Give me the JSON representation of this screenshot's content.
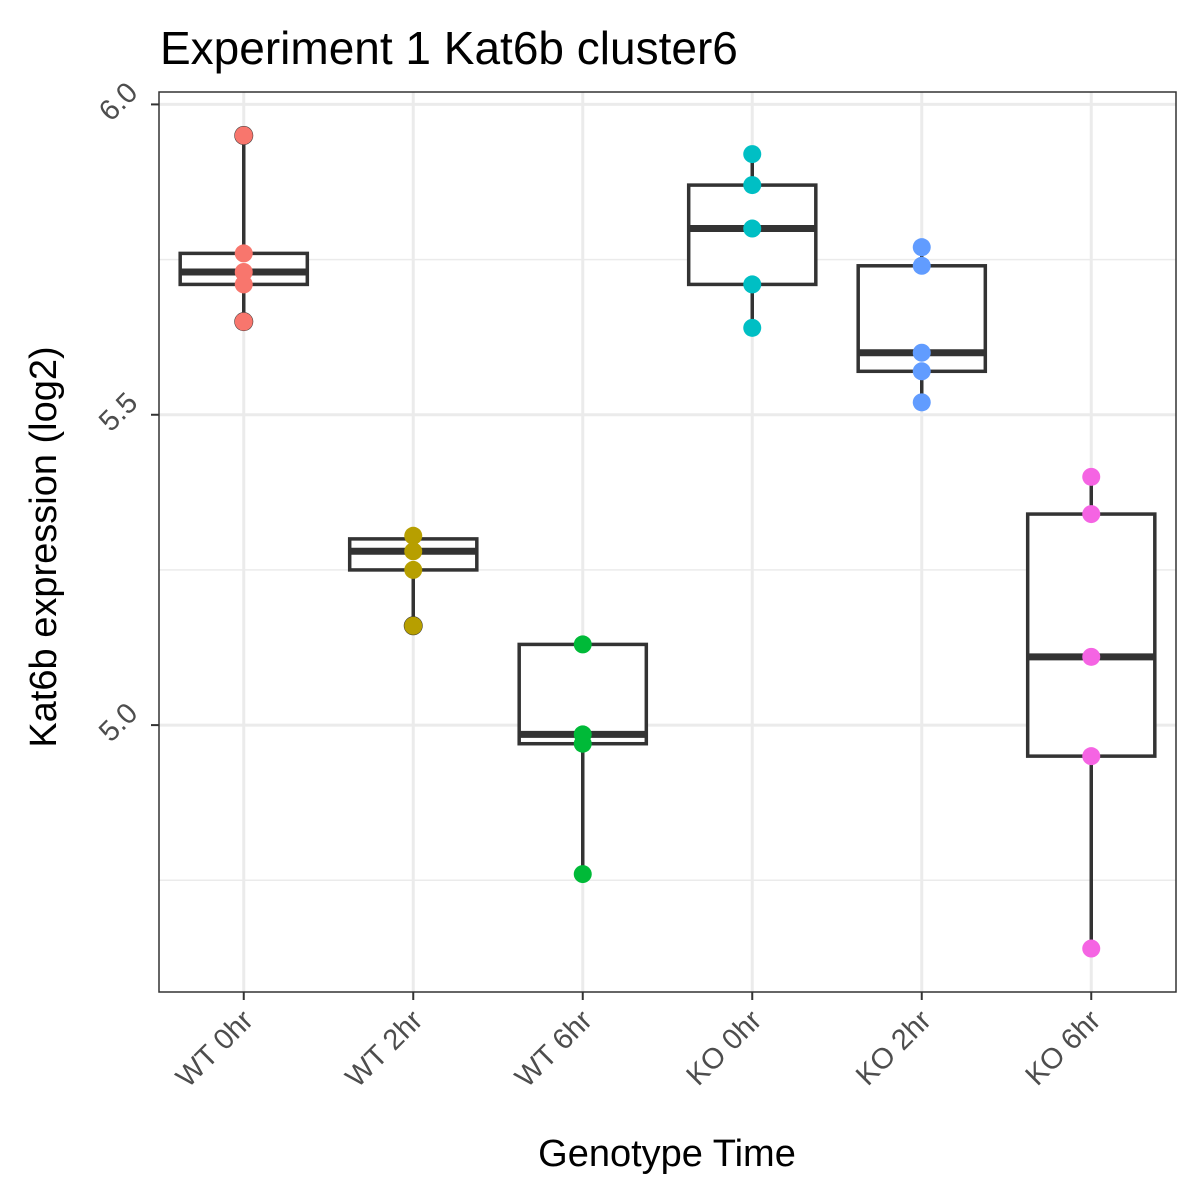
{
  "chart_data": {
    "type": "boxplot",
    "title": "Experiment 1 Kat6b cluster6",
    "xlabel": "Genotype Time",
    "ylabel": "Kat6b expression (log2)",
    "ylim": [
      4.57,
      6.02
    ],
    "yticks": [
      5.0,
      5.5,
      6.0
    ],
    "ytick_labels": [
      "5.0",
      "5.5",
      "6.0"
    ],
    "grid": true,
    "legend": "none",
    "categories": [
      "WT 0hr",
      "WT 2hr",
      "WT 6hr",
      "KO 0hr",
      "KO 2hr",
      "KO 6hr"
    ],
    "series": [
      {
        "points": [
          5.95,
          5.76,
          5.73,
          5.71,
          5.65
        ],
        "box": {
          "min": 5.65,
          "q1": 5.71,
          "median": 5.73,
          "q3": 5.76,
          "max": 5.95
        },
        "outliers": [
          5.95,
          5.65
        ],
        "color": "#F8766D"
      },
      {
        "points": [
          5.305,
          5.28,
          5.25,
          5.16
        ],
        "box": {
          "min": 5.16,
          "q1": 5.25,
          "median": 5.28,
          "q3": 5.3,
          "max": 5.305
        },
        "outliers": [
          5.16
        ],
        "color": "#B79F00"
      },
      {
        "points": [
          5.13,
          4.985,
          4.97,
          4.76
        ],
        "box": {
          "min": 4.76,
          "q1": 4.97,
          "median": 4.985,
          "q3": 5.13,
          "max": 5.13
        },
        "outliers": [],
        "color": "#00BA38"
      },
      {
        "points": [
          5.92,
          5.87,
          5.8,
          5.71,
          5.64
        ],
        "box": {
          "min": 5.64,
          "q1": 5.71,
          "median": 5.8,
          "q3": 5.87,
          "max": 5.92
        },
        "outliers": [],
        "color": "#00BFC4"
      },
      {
        "points": [
          5.77,
          5.74,
          5.6,
          5.57,
          5.52
        ],
        "box": {
          "min": 5.52,
          "q1": 5.57,
          "median": 5.6,
          "q3": 5.74,
          "max": 5.77
        },
        "outliers": [],
        "color": "#619CFF"
      },
      {
        "points": [
          5.4,
          5.34,
          5.11,
          4.95,
          4.64
        ],
        "box": {
          "min": 4.64,
          "q1": 4.95,
          "median": 5.11,
          "q3": 5.34,
          "max": 5.4
        },
        "outliers": [],
        "color": "#F564E3"
      }
    ]
  }
}
